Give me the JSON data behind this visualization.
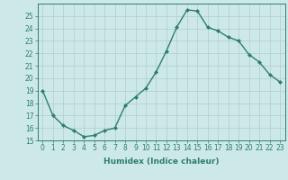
{
  "x": [
    0,
    1,
    2,
    3,
    4,
    5,
    6,
    7,
    8,
    9,
    10,
    11,
    12,
    13,
    14,
    15,
    16,
    17,
    18,
    19,
    20,
    21,
    22,
    23
  ],
  "y": [
    19,
    17,
    16.2,
    15.8,
    15.3,
    15.4,
    15.8,
    16,
    17.8,
    18.5,
    19.2,
    20.5,
    22.2,
    24.1,
    25.5,
    25.4,
    24.1,
    23.8,
    23.3,
    23,
    21.9,
    21.3,
    20.3,
    19.7
  ],
  "line_color": "#2e7d6e",
  "marker": "D",
  "marker_size": 2.0,
  "bg_color": "#cce9e8",
  "grid_color": "#b0cccc",
  "xlabel": "Humidex (Indice chaleur)",
  "ylim": [
    15,
    26
  ],
  "xlim": [
    -0.5,
    23.5
  ],
  "yticks": [
    15,
    16,
    17,
    18,
    19,
    20,
    21,
    22,
    23,
    24,
    25
  ],
  "xticks": [
    0,
    1,
    2,
    3,
    4,
    5,
    6,
    7,
    8,
    9,
    10,
    11,
    12,
    13,
    14,
    15,
    16,
    17,
    18,
    19,
    20,
    21,
    22,
    23
  ],
  "tick_label_fontsize": 5.5,
  "xlabel_fontsize": 6.5,
  "line_width": 1.0
}
